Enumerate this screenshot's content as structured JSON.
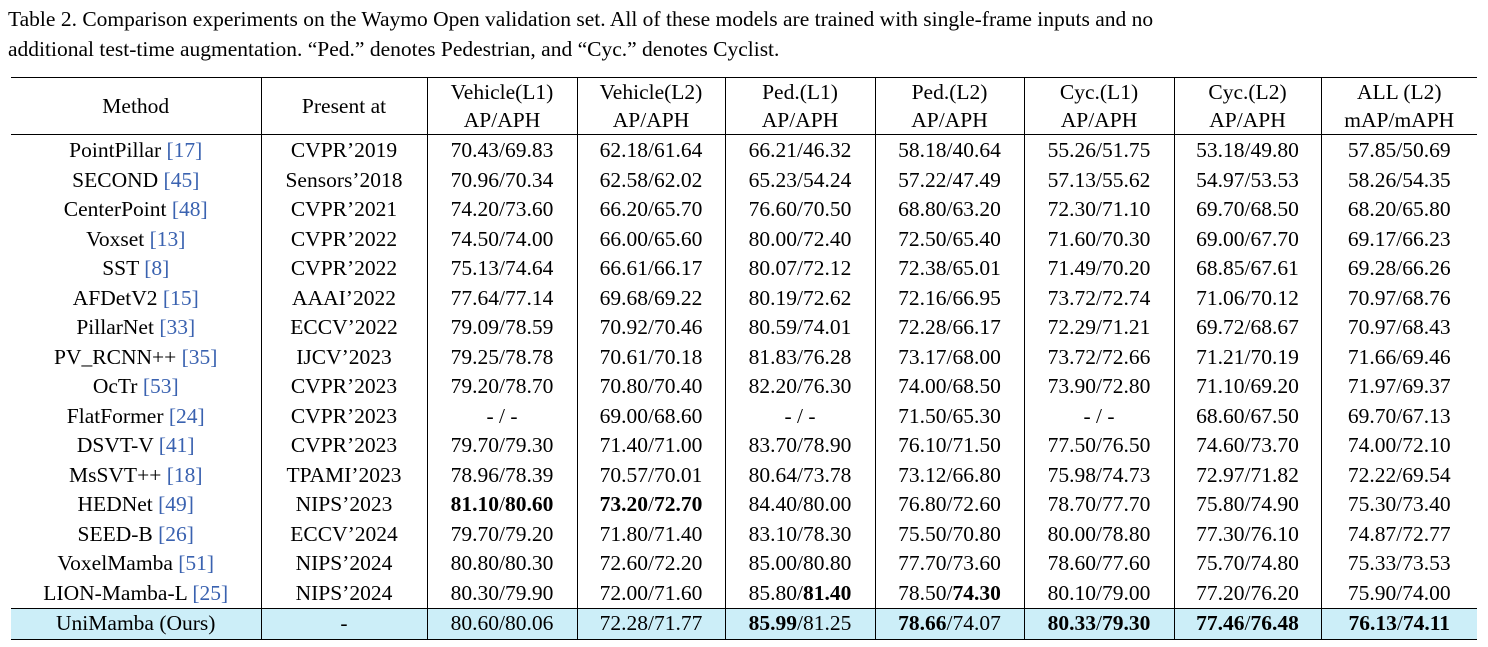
{
  "caption": {
    "line1": "Table 2.  Comparison experiments on the Waymo Open validation set.  All of these models are trained with single-frame inputs and no",
    "line2": "additional test-time augmentation. “Ped.” denotes Pedestrian, and “Cyc.” denotes Cyclist."
  },
  "headers": {
    "method": "Method",
    "present": "Present at",
    "cols": [
      {
        "top": "Vehicle(L1)",
        "bottom": "AP/APH"
      },
      {
        "top": "Vehicle(L2)",
        "bottom": "AP/APH"
      },
      {
        "top": "Ped.(L1)",
        "bottom": "AP/APH"
      },
      {
        "top": "Ped.(L2)",
        "bottom": "AP/APH"
      },
      {
        "top": "Cyc.(L1)",
        "bottom": "AP/APH"
      },
      {
        "top": "Cyc.(L2)",
        "bottom": "AP/APH"
      },
      {
        "top": "ALL (L2)",
        "bottom": "mAP/mAPH"
      }
    ]
  },
  "rows": [
    {
      "method": "PointPillar",
      "cite": "[17]",
      "present": "CVPR’2019",
      "vals": [
        "70.43/69.83",
        "62.18/61.64",
        "66.21/46.32",
        "58.18/40.64",
        "55.26/51.75",
        "53.18/49.80",
        "57.85/50.69"
      ]
    },
    {
      "method": "SECOND",
      "cite": "[45]",
      "present": "Sensors’2018",
      "vals": [
        "70.96/70.34",
        "62.58/62.02",
        "65.23/54.24",
        "57.22/47.49",
        "57.13/55.62",
        "54.97/53.53",
        "58.26/54.35"
      ]
    },
    {
      "method": "CenterPoint",
      "cite": "[48]",
      "present": "CVPR’2021",
      "vals": [
        "74.20/73.60",
        "66.20/65.70",
        "76.60/70.50",
        "68.80/63.20",
        "72.30/71.10",
        "69.70/68.50",
        "68.20/65.80"
      ]
    },
    {
      "method": "Voxset",
      "cite": "[13]",
      "present": "CVPR’2022",
      "vals": [
        "74.50/74.00",
        "66.00/65.60",
        "80.00/72.40",
        "72.50/65.40",
        "71.60/70.30",
        "69.00/67.70",
        "69.17/66.23"
      ]
    },
    {
      "method": "SST",
      "cite": "[8]",
      "present": "CVPR’2022",
      "vals": [
        "75.13/74.64",
        "66.61/66.17",
        "80.07/72.12",
        "72.38/65.01",
        "71.49/70.20",
        "68.85/67.61",
        "69.28/66.26"
      ]
    },
    {
      "method": "AFDetV2",
      "cite": "[15]",
      "present": "AAAI’2022",
      "vals": [
        "77.64/77.14",
        "69.68/69.22",
        "80.19/72.62",
        "72.16/66.95",
        "73.72/72.74",
        "71.06/70.12",
        "70.97/68.76"
      ]
    },
    {
      "method": "PillarNet",
      "cite": "[33]",
      "present": "ECCV’2022",
      "vals": [
        "79.09/78.59",
        "70.92/70.46",
        "80.59/74.01",
        "72.28/66.17",
        "72.29/71.21",
        "69.72/68.67",
        "70.97/68.43"
      ]
    },
    {
      "method": "PV_RCNN++",
      "cite": "[35]",
      "present": "IJCV’2023",
      "vals": [
        "79.25/78.78",
        "70.61/70.18",
        "81.83/76.28",
        "73.17/68.00",
        "73.72/72.66",
        "71.21/70.19",
        "71.66/69.46"
      ]
    },
    {
      "method": "OcTr",
      "cite": "[53]",
      "present": "CVPR’2023",
      "vals": [
        "79.20/78.70",
        "70.80/70.40",
        "82.20/76.30",
        "74.00/68.50",
        "73.90/72.80",
        "71.10/69.20",
        "71.97/69.37"
      ]
    },
    {
      "method": "FlatFormer",
      "cite": "[24]",
      "present": "CVPR’2023",
      "vals": [
        "- / -",
        "69.00/68.60",
        "- / -",
        "71.50/65.30",
        "- / -",
        "68.60/67.50",
        "69.70/67.13"
      ]
    },
    {
      "method": "DSVT-V",
      "cite": "[41]",
      "present": "CVPR’2023",
      "vals": [
        "79.70/79.30",
        "71.40/71.00",
        "83.70/78.90",
        "76.10/71.50",
        "77.50/76.50",
        "74.60/73.70",
        "74.00/72.10"
      ]
    },
    {
      "method": "MsSVT++",
      "cite": "[18]",
      "present": "TPAMI’2023",
      "vals": [
        "78.96/78.39",
        "70.57/70.01",
        "80.64/73.78",
        "73.12/66.80",
        "75.98/74.73",
        "72.97/71.82",
        "72.22/69.54"
      ]
    },
    {
      "method": "HEDNet",
      "cite": "[49]",
      "present": "NIPS’2023",
      "vals": [
        "81.10/80.60",
        "73.20/72.70",
        "84.40/80.00",
        "76.80/72.60",
        "78.70/77.70",
        "75.80/74.90",
        "75.30/73.40"
      ]
    },
    {
      "method": "SEED-B",
      "cite": "[26]",
      "present": "ECCV’2024",
      "vals": [
        "79.70/79.20",
        "71.80/71.40",
        "83.10/78.30",
        "75.50/70.80",
        "80.00/78.80",
        "77.30/76.10",
        "74.87/72.77"
      ]
    },
    {
      "method": "VoxelMamba",
      "cite": "[51]",
      "present": "NIPS’2024",
      "vals": [
        "80.80/80.30",
        "72.60/72.20",
        "85.00/80.80",
        "77.70/73.60",
        "78.60/77.60",
        "75.70/74.80",
        "75.33/73.53"
      ]
    },
    {
      "method": "LION-Mamba-L",
      "cite": "[25]",
      "present": "NIPS’2024",
      "vals": [
        "80.30/79.90",
        "72.00/71.60",
        "85.80/81.40",
        "78.50/74.30",
        "80.10/79.00",
        "77.20/76.20",
        "75.90/74.00"
      ]
    }
  ],
  "ours": {
    "method": "UniMamba (Ours)",
    "present": "-",
    "vals": [
      "80.60/80.06",
      "72.28/71.77",
      "85.99/81.25",
      "78.66/74.07",
      "80.33/79.30",
      "77.46/76.48",
      "76.13/74.11"
    ]
  },
  "colors": {
    "citation": "#3a62b0",
    "highlight_row": "#cceef8"
  }
}
